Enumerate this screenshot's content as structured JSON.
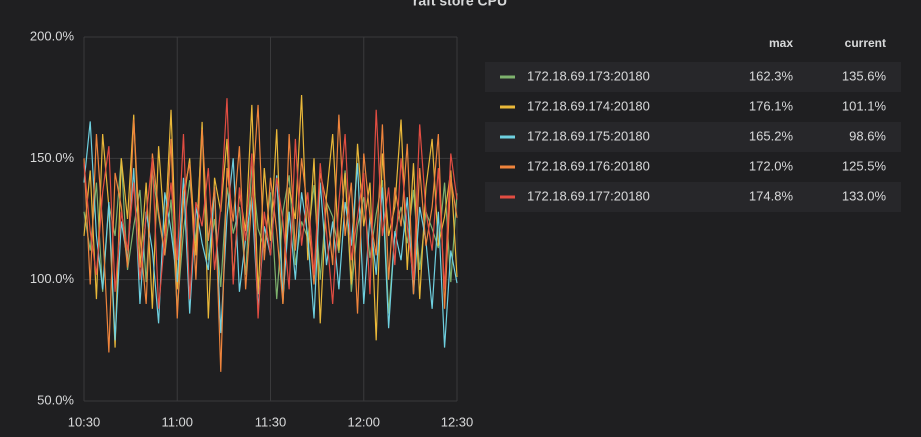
{
  "chart_data": {
    "type": "line",
    "title": "raft store CPU",
    "x": [
      "10:30",
      "10:32",
      "10:34",
      "10:36",
      "10:38",
      "10:40",
      "10:42",
      "10:44",
      "10:46",
      "10:48",
      "10:50",
      "10:52",
      "10:54",
      "10:56",
      "10:58",
      "11:00",
      "11:02",
      "11:04",
      "11:06",
      "11:08",
      "11:10",
      "11:12",
      "11:14",
      "11:16",
      "11:18",
      "11:20",
      "11:22",
      "11:24",
      "11:26",
      "11:28",
      "11:30",
      "11:32",
      "11:34",
      "11:36",
      "11:38",
      "11:40",
      "11:42",
      "11:44",
      "11:46",
      "11:48",
      "11:50",
      "11:52",
      "11:54",
      "11:56",
      "11:58",
      "12:00",
      "12:02",
      "12:04",
      "12:06",
      "12:08",
      "12:10",
      "12:12",
      "12:14",
      "12:16",
      "12:18",
      "12:20",
      "12:22",
      "12:24",
      "12:26",
      "12:28",
      "12:30"
    ],
    "xticks": [
      "10:30",
      "11:00",
      "11:30",
      "12:00",
      "12:30"
    ],
    "ylim": [
      50,
      200
    ],
    "yticks": [
      {
        "value": 50,
        "label": "50.0%"
      },
      {
        "value": 100,
        "label": "100.0%"
      },
      {
        "value": 150,
        "label": "150.0%"
      },
      {
        "value": 200,
        "label": "200.0%"
      }
    ],
    "grid": true,
    "series": [
      {
        "name": "172.18.69.173:20180",
        "color": "#7eb26d",
        "values": [
          128,
          112,
          140,
          95,
          131,
          118,
          150,
          104,
          122,
          137,
          99,
          145,
          126,
          110,
          133,
          88,
          120,
          141,
          115,
          162.3,
          108,
          125,
          97,
          138,
          119,
          130,
          102,
          147,
          121,
          113,
          136,
          92,
          128,
          143,
          106,
          124,
          117,
          139,
          100,
          132,
          126,
          111,
          145,
          95,
          122,
          134,
          109,
          127,
          141,
          86,
          119,
          130,
          115,
          137,
          104,
          128,
          121,
          113,
          140,
          99,
          135.6
        ]
      },
      {
        "name": "172.18.69.174:20180",
        "color": "#eab839",
        "values": [
          118,
          145,
          92,
          160,
          130,
          72,
          150,
          125,
          168,
          105,
          140,
          88,
          155,
          118,
          170,
          96,
          132,
          150,
          110,
          165,
          84,
          142,
          128,
          158,
          100,
          136,
          120,
          172,
          94,
          146,
          116,
          162,
          90,
          138,
          125,
          176.1,
          108,
          150,
          82,
          134,
          160,
          112,
          144,
          98,
          156,
          122,
          140,
          75,
          152,
          118,
          130,
          166,
          104,
          148,
          92,
          138,
          158,
          114,
          126,
          145,
          101.1
        ]
      },
      {
        "name": "172.18.69.175:20180",
        "color": "#6ed0e0",
        "values": [
          140,
          165.2,
          118,
          96,
          132,
          75,
          124,
          108,
          146,
          90,
          128,
          112,
          82,
          136,
          120,
          99,
          142,
          86,
          130,
          115,
          104,
          138,
          78,
          126,
          150,
          95,
          117,
          134,
          88,
          122,
          110,
          143,
          92,
          128,
          100,
          136,
          118,
          84,
          140,
          106,
          124,
          96,
          132,
          114,
          148,
          90,
          126,
          102,
          138,
          80,
          120,
          108,
          134,
          94,
          130,
          116,
          88,
          128,
          72,
          112,
          98.6
        ]
      },
      {
        "name": "172.18.69.176:20180",
        "color": "#ef843c",
        "values": [
          150,
          98,
          160,
          122,
          70,
          144,
          130,
          105,
          166,
          118,
          90,
          152,
          128,
          110,
          158,
          84,
          136,
          148,
          100,
          162,
          116,
          138,
          62,
          146,
          124,
          155,
          96,
          134,
          172.0,
          108,
          142,
          120,
          90,
          160,
          112,
          150,
          128,
          98,
          144,
          132,
          106,
          168,
          118,
          140,
          86,
          152,
          126,
          110,
          164,
          100,
          138,
          122,
          156,
          94,
          146,
          114,
          130,
          160,
          88,
          142,
          125.5
        ]
      },
      {
        "name": "172.18.69.177:20180",
        "color": "#e24d42",
        "values": [
          148,
          120,
          102,
          136,
          155,
          95,
          128,
          112,
          140,
          100,
          126,
          150,
          88,
          118,
          140,
          108,
          160,
          92,
          132,
          122,
          146,
          104,
          130,
          174.8,
          98,
          138,
          116,
          152,
          84,
          128,
          110,
          142,
          124,
          96,
          158,
          114,
          136,
          102,
          148,
          120,
          90,
          132,
          160,
          108,
          126,
          144,
          94,
          170,
          118,
          138,
          106,
          150,
          122,
          100,
          164,
          128,
          112,
          146,
          96,
          152,
          133.0
        ]
      }
    ],
    "legend": {
      "columns": [
        "max",
        "current"
      ],
      "rows": [
        [
          "162.3%",
          "135.6%"
        ],
        [
          "176.1%",
          "101.1%"
        ],
        [
          "165.2%",
          "98.6%"
        ],
        [
          "172.0%",
          "125.5%"
        ],
        [
          "174.8%",
          "133.0%"
        ]
      ]
    }
  }
}
